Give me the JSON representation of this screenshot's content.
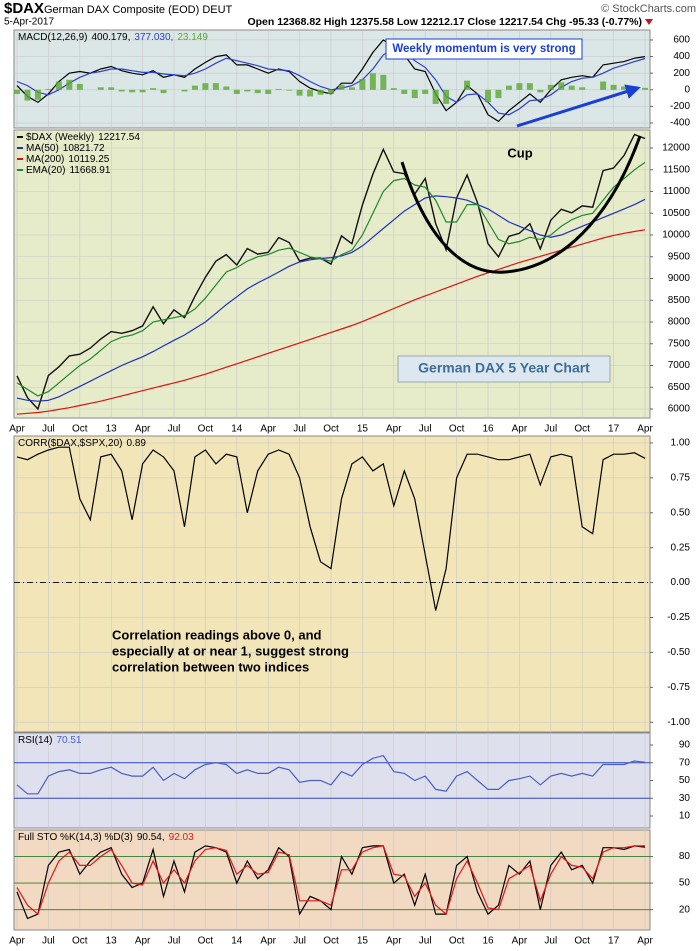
{
  "header": {
    "symbol": "$DAX",
    "name": "German DAX Composite (EOD) DEUT",
    "date": "5-Apr-2017",
    "quote": "Open 12368.82 High 12375.58 Low 12212.17 Close 12217.54 Chg -95.33 (-0.77%)",
    "credit": "© StockCharts.com"
  },
  "chart_data": [
    {
      "type": "line",
      "label": "MACD(12,26,9)",
      "background": "#dbe7e6",
      "grid": true,
      "annotation": "Weekly momentum is very strong",
      "ylim": [
        -460,
        720
      ],
      "yticks": [
        600,
        400,
        200,
        0,
        -200,
        -400
      ],
      "series": [
        {
          "color": "#000000",
          "last_label": "400.179,",
          "values": [
            50,
            -80,
            -150,
            -50,
            100,
            200,
            220,
            200,
            250,
            280,
            230,
            200,
            180,
            230,
            150,
            180,
            150,
            250,
            330,
            400,
            420,
            300,
            300,
            250,
            200,
            250,
            220,
            100,
            20,
            -20,
            -50,
            80,
            80,
            250,
            450,
            600,
            520,
            420,
            250,
            220,
            -50,
            -250,
            -150,
            50,
            -50,
            -300,
            -380,
            -250,
            -150,
            -50,
            -150,
            0,
            120,
            150,
            170,
            150,
            300,
            320,
            340,
            380,
            400.179
          ]
        },
        {
          "color": "#2b3fd0",
          "last_label": "377.030,",
          "values": [
            100,
            50,
            -30,
            -60,
            0,
            80,
            150,
            200,
            220,
            250,
            250,
            230,
            210,
            210,
            190,
            180,
            170,
            200,
            250,
            320,
            380,
            350,
            320,
            290,
            250,
            240,
            230,
            170,
            100,
            40,
            0,
            20,
            50,
            120,
            250,
            420,
            500,
            470,
            350,
            270,
            120,
            -80,
            -150,
            -60,
            -50,
            -150,
            -280,
            -300,
            -230,
            -130,
            -120,
            -60,
            30,
            100,
            140,
            150,
            200,
            260,
            300,
            340,
            377.03
          ]
        },
        {
          "color": "#5aa832",
          "kind": "histogram",
          "last_label": "23.149",
          "values": [
            -50,
            -130,
            -120,
            10,
            100,
            120,
            70,
            0,
            30,
            30,
            -20,
            -30,
            -30,
            20,
            -40,
            0,
            -20,
            50,
            80,
            80,
            40,
            -50,
            -20,
            -40,
            -50,
            10,
            -10,
            -70,
            -80,
            -60,
            -50,
            60,
            30,
            130,
            200,
            180,
            20,
            -50,
            -100,
            -50,
            -170,
            -170,
            0,
            110,
            0,
            -150,
            -100,
            50,
            80,
            80,
            -30,
            60,
            90,
            50,
            30,
            0,
            100,
            60,
            40,
            40,
            23.149
          ]
        }
      ]
    },
    {
      "type": "line",
      "background": "#e6ebc9",
      "grid": true,
      "annotation": "Cup",
      "caption": "German DAX 5 Year Chart",
      "categories": [
        "Apr",
        null,
        null,
        "Jul",
        null,
        null,
        "Oct",
        null,
        null,
        "13",
        null,
        null,
        "Apr",
        null,
        null,
        "Jul",
        null,
        null,
        "Oct",
        null,
        null,
        "14",
        null,
        null,
        "Apr",
        null,
        null,
        "Jul",
        null,
        null,
        "Oct",
        null,
        null,
        "15",
        null,
        null,
        "Apr",
        null,
        null,
        "Jul",
        null,
        null,
        "Oct",
        null,
        null,
        "16",
        null,
        null,
        "Apr",
        null,
        null,
        "Jul",
        null,
        null,
        "Oct",
        null,
        null,
        "17",
        null,
        null,
        "Apr"
      ],
      "ylim": [
        5793,
        12414
      ],
      "yticks": [
        6000,
        6500,
        7000,
        7500,
        8000,
        8500,
        9000,
        9500,
        10000,
        10500,
        11000,
        11500,
        12000
      ],
      "series": [
        {
          "name": "$DAX (Weekly)",
          "color": "#111111",
          "last_label": "12217.54",
          "values": [
            6760,
            6260,
            6000,
            6770,
            6970,
            7220,
            7260,
            7400,
            7610,
            7780,
            7740,
            7800,
            7910,
            8350,
            7960,
            8280,
            8100,
            8590,
            9030,
            9400,
            9550,
            9310,
            9690,
            9560,
            9600,
            9940,
            9830,
            9400,
            9470,
            9470,
            9330,
            9980,
            9800,
            10690,
            11400,
            11970,
            11450,
            11410,
            10940,
            11300,
            10260,
            9660,
            10850,
            11380,
            10740,
            9800,
            9500,
            9970,
            10040,
            10260,
            9680,
            10340,
            10590,
            10510,
            10670,
            10640,
            11480,
            11540,
            11830,
            12310,
            12217.54
          ]
        },
        {
          "name": "MA(50)",
          "color": "#1f2fbf",
          "last_label": "10821.72",
          "values": [
            6250,
            6200,
            6180,
            6200,
            6280,
            6400,
            6520,
            6640,
            6760,
            6880,
            7000,
            7100,
            7200,
            7320,
            7450,
            7580,
            7700,
            7850,
            8000,
            8200,
            8400,
            8580,
            8760,
            8900,
            9020,
            9150,
            9280,
            9380,
            9430,
            9460,
            9480,
            9520,
            9600,
            9750,
            9950,
            10150,
            10350,
            10550,
            10700,
            10850,
            10900,
            10880,
            10850,
            10800,
            10700,
            10600,
            10450,
            10300,
            10200,
            10100,
            10000,
            9950,
            10000,
            10100,
            10200,
            10300,
            10400,
            10500,
            10600,
            10700,
            10821.72
          ]
        },
        {
          "name": "MA(200)",
          "color": "#e01010",
          "last_label": "10119.25",
          "values": [
            5880,
            5900,
            5920,
            5950,
            5990,
            6030,
            6080,
            6130,
            6180,
            6240,
            6300,
            6360,
            6420,
            6480,
            6540,
            6600,
            6660,
            6730,
            6800,
            6880,
            6960,
            7040,
            7120,
            7200,
            7280,
            7360,
            7440,
            7520,
            7600,
            7680,
            7760,
            7840,
            7920,
            8010,
            8110,
            8210,
            8310,
            8410,
            8510,
            8600,
            8690,
            8780,
            8870,
            8960,
            9050,
            9130,
            9210,
            9290,
            9370,
            9440,
            9510,
            9580,
            9650,
            9720,
            9790,
            9860,
            9930,
            9990,
            10040,
            10080,
            10119.25
          ]
        },
        {
          "name": "EMA(20)",
          "color": "#1e8a2a",
          "last_label": "11668.91",
          "values": [
            6600,
            6450,
            6300,
            6400,
            6600,
            6800,
            7000,
            7150,
            7350,
            7550,
            7650,
            7700,
            7800,
            8000,
            8050,
            8100,
            8150,
            8300,
            8550,
            8850,
            9150,
            9250,
            9400,
            9500,
            9550,
            9650,
            9700,
            9600,
            9500,
            9450,
            9400,
            9550,
            9650,
            10000,
            10500,
            11000,
            11250,
            11300,
            11150,
            11100,
            10800,
            10300,
            10300,
            10700,
            10700,
            10300,
            9900,
            9800,
            9850,
            9950,
            9900,
            10000,
            10200,
            10350,
            10450,
            10500,
            10800,
            11100,
            11300,
            11500,
            11668.91
          ]
        }
      ]
    },
    {
      "type": "line",
      "label": "CORR($DAX,$SPX,20)",
      "background": "#f2e6b9",
      "grid": true,
      "annotation": [
        "Correlation readings above 0, and",
        "especially at or near 1, suggest strong",
        "correlation between two indices"
      ],
      "ylim": [
        -1.07,
        1.05
      ],
      "yticks": [
        {
          "value": 1,
          "label": "1.00"
        },
        {
          "value": 0.75,
          "label": "0.75"
        },
        {
          "value": 0.5,
          "label": "0.50"
        },
        {
          "value": 0.25,
          "label": "0.25"
        },
        {
          "value": 0,
          "label": "0.00"
        },
        {
          "value": -0.25,
          "label": "-0.25"
        },
        {
          "value": -0.5,
          "label": "-0.50"
        },
        {
          "value": -0.75,
          "label": "-0.75"
        },
        {
          "value": -1,
          "label": "-1.00"
        }
      ],
      "ref_lines": [
        0
      ],
      "ref_line_color": "#000000",
      "ref_line_style": "dashdot",
      "series": [
        {
          "color": "#000000",
          "last_label": "0.89",
          "values": [
            0.9,
            0.88,
            0.92,
            0.95,
            0.97,
            0.97,
            0.6,
            0.45,
            0.9,
            0.92,
            0.8,
            0.45,
            0.85,
            0.95,
            0.9,
            0.8,
            0.4,
            0.9,
            0.95,
            0.85,
            0.92,
            0.9,
            0.5,
            0.8,
            0.92,
            0.95,
            0.92,
            0.75,
            0.4,
            0.15,
            0.1,
            0.6,
            0.85,
            0.9,
            0.8,
            0.85,
            0.55,
            0.8,
            0.6,
            0.2,
            -0.2,
            0.1,
            0.75,
            0.92,
            0.92,
            0.9,
            0.88,
            0.88,
            0.9,
            0.92,
            0.7,
            0.9,
            0.92,
            0.9,
            0.4,
            0.35,
            0.88,
            0.92,
            0.92,
            0.93,
            0.89
          ]
        }
      ]
    },
    {
      "type": "line",
      "label": "RSI(14)",
      "background": "#dfe0ee",
      "grid": false,
      "ylim": [
        -3.5,
        103.5
      ],
      "yticks": [
        90,
        70,
        50,
        30,
        10
      ],
      "ref_lines": [
        70,
        30
      ],
      "ref_line_color": "#3344bb",
      "ref_line_style": "solid",
      "series": [
        {
          "color": "#4a5ec4",
          "last_label": "70.51",
          "values": [
            45,
            35,
            35,
            55,
            60,
            62,
            58,
            58,
            62,
            65,
            58,
            55,
            55,
            65,
            50,
            58,
            52,
            62,
            68,
            70,
            68,
            58,
            62,
            58,
            58,
            65,
            62,
            48,
            50,
            50,
            45,
            60,
            55,
            68,
            75,
            78,
            60,
            58,
            50,
            55,
            40,
            38,
            55,
            60,
            50,
            40,
            40,
            50,
            52,
            55,
            45,
            55,
            58,
            55,
            58,
            55,
            68,
            68,
            68,
            72,
            70.51
          ]
        }
      ]
    },
    {
      "type": "line",
      "label": "Full STO %K(14,3) %D(3)",
      "background": "#f2d9c1",
      "grid": false,
      "categories": [
        "Apr",
        null,
        null,
        "Jul",
        null,
        null,
        "Oct",
        null,
        null,
        "13",
        null,
        null,
        "Apr",
        null,
        null,
        "Jul",
        null,
        null,
        "Oct",
        null,
        null,
        "14",
        null,
        null,
        "Apr",
        null,
        null,
        "Jul",
        null,
        null,
        "Oct",
        null,
        null,
        "15",
        null,
        null,
        "Apr",
        null,
        null,
        "Jul",
        null,
        null,
        "Oct",
        null,
        null,
        "16",
        null,
        null,
        "Apr",
        null,
        null,
        "Jul",
        null,
        null,
        "Oct",
        null,
        null,
        "17",
        null,
        null,
        "Apr"
      ],
      "ylim": [
        -3,
        110
      ],
      "yticks": [
        80,
        50,
        20
      ],
      "ref_lines": [
        80,
        50,
        20
      ],
      "ref_line_color": "#2f7a2f",
      "ref_line_style": "solid",
      "series": [
        {
          "color": "#000000",
          "last_label": "90.54,",
          "values": [
            40,
            10,
            15,
            70,
            85,
            88,
            60,
            75,
            85,
            90,
            60,
            45,
            50,
            88,
            35,
            75,
            40,
            85,
            92,
            90,
            85,
            50,
            75,
            55,
            65,
            90,
            80,
            15,
            35,
            30,
            20,
            80,
            60,
            90,
            92,
            92,
            50,
            60,
            25,
            60,
            15,
            15,
            70,
            80,
            40,
            15,
            25,
            70,
            60,
            75,
            20,
            70,
            85,
            65,
            70,
            50,
            90,
            90,
            88,
            92,
            90.54
          ]
        },
        {
          "color": "#e01818",
          "last_label": "92.03",
          "values": [
            45,
            25,
            15,
            50,
            75,
            85,
            70,
            70,
            80,
            88,
            70,
            50,
            48,
            75,
            50,
            65,
            50,
            75,
            88,
            90,
            87,
            60,
            70,
            60,
            62,
            85,
            82,
            30,
            30,
            30,
            25,
            65,
            65,
            85,
            90,
            92,
            60,
            58,
            35,
            50,
            25,
            15,
            55,
            75,
            50,
            22,
            20,
            55,
            62,
            70,
            30,
            60,
            80,
            70,
            68,
            55,
            85,
            90,
            90,
            92,
            92.03
          ]
        }
      ]
    }
  ]
}
